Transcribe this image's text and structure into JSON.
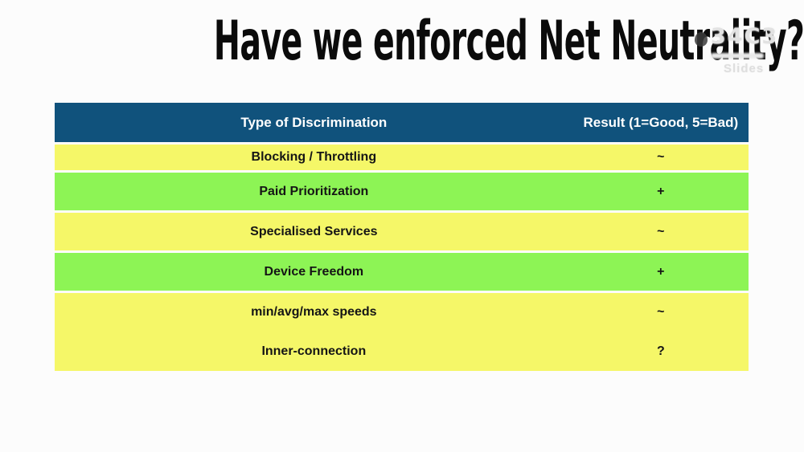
{
  "title": "Have we enforced Net Neutrality?",
  "watermark": {
    "logo": "34C3",
    "label": "Slides"
  },
  "table": {
    "columns": [
      "Type of Discrimination",
      "Result (1=Good, 5=Bad)"
    ],
    "rows": [
      {
        "type": "Blocking / Throttling",
        "result": "~",
        "highlight": "yellow"
      },
      {
        "type": "Paid Prioritization",
        "result": "+",
        "highlight": "green"
      },
      {
        "type": "Specialised Services",
        "result": "~",
        "highlight": "yellow"
      },
      {
        "type": "Device Freedom",
        "result": "+",
        "highlight": "green"
      },
      {
        "type": "min/avg/max speeds",
        "result": "~",
        "highlight": "yellow"
      },
      {
        "type": "Inner-connection",
        "result": "?",
        "highlight": "yellow"
      }
    ]
  },
  "colors": {
    "page_bg": "#FCFCFC",
    "title_color": "#0B0B0B",
    "header_bg": "#10527C",
    "header_text": "#FFFFFF",
    "row_text": "#151515",
    "row_yellow": "#F5F768",
    "row_green": "#8DF455"
  }
}
